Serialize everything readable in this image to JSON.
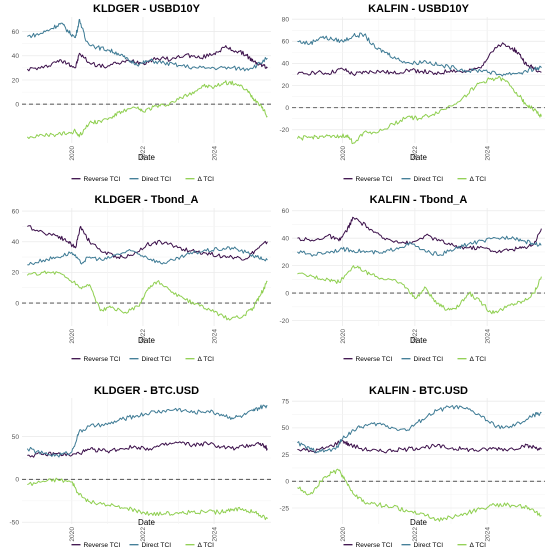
{
  "colors": {
    "reverse": "#3b0f4a",
    "direct": "#3d7a94",
    "delta": "#8fcf50",
    "zero_line": "#666666",
    "grid": "#ebebeb"
  },
  "legend": {
    "reverse": "Reverse TCI",
    "direct": "Direct TCI",
    "delta": "Δ TCI"
  },
  "chart_data": [
    {
      "type": "line",
      "title": "KLDGER - USBD10Y",
      "xlabel": "Date",
      "ylabel": "",
      "xlim": [
        2018.6,
        2025.6
      ],
      "ylim": [
        -32,
        72
      ],
      "xticks": [
        2020,
        2022,
        2024
      ],
      "yticks": [
        0,
        20,
        40,
        60
      ],
      "grid": true,
      "legend_position": "bottom",
      "series": [
        {
          "key": "reverse",
          "name": "Reverse TCI",
          "x": [
            2018.75,
            2019.2,
            2019.6,
            2019.9,
            2020.1,
            2020.22,
            2020.5,
            2020.9,
            2021.3,
            2021.7,
            2022.0,
            2022.4,
            2022.8,
            2023.2,
            2023.6,
            2024.0,
            2024.3,
            2024.6,
            2024.9,
            2025.1,
            2025.3,
            2025.5
          ],
          "y": [
            29,
            30,
            36,
            34,
            30,
            42,
            34,
            31,
            34,
            36,
            34,
            38,
            37,
            41,
            38,
            42,
            47,
            44,
            41,
            35,
            33,
            30
          ]
        },
        {
          "key": "direct",
          "name": "Direct TCI",
          "x": [
            2018.75,
            2019.1,
            2019.4,
            2019.7,
            2019.9,
            2020.1,
            2020.22,
            2020.4,
            2020.7,
            2021.0,
            2021.3,
            2021.6,
            2021.9,
            2022.2,
            2022.6,
            2023.0,
            2023.5,
            2024.0,
            2024.5,
            2024.9,
            2025.2,
            2025.5
          ],
          "y": [
            56,
            58,
            62,
            67,
            60,
            55,
            70,
            52,
            47,
            45,
            42,
            36,
            33,
            36,
            34,
            32,
            30,
            30,
            30,
            29,
            32,
            38
          ]
        },
        {
          "key": "delta",
          "name": "Δ TCI",
          "x": [
            2018.75,
            2019.2,
            2019.6,
            2019.9,
            2020.1,
            2020.22,
            2020.5,
            2020.8,
            2021.1,
            2021.4,
            2021.8,
            2022.0,
            2022.3,
            2022.6,
            2023.0,
            2023.4,
            2023.7,
            2024.0,
            2024.3,
            2024.6,
            2024.9,
            2025.1,
            2025.3,
            2025.5
          ],
          "y": [
            -27,
            -26,
            -25,
            -24,
            -22,
            -26,
            -15,
            -14,
            -11,
            -6,
            -3,
            -6,
            -2,
            -1,
            4,
            10,
            15,
            14,
            18,
            17,
            12,
            5,
            0,
            -10
          ]
        }
      ]
    },
    {
      "type": "line",
      "title": "KALFIN - USBD10Y",
      "xlabel": "Date",
      "ylabel": "",
      "xlim": [
        2018.6,
        2025.6
      ],
      "ylim": [
        -32,
        82
      ],
      "xticks": [
        2020,
        2022,
        2024
      ],
      "yticks": [
        -20,
        0,
        20,
        40,
        60,
        80
      ],
      "grid": true,
      "legend_position": "bottom",
      "series": [
        {
          "key": "reverse",
          "name": "Reverse TCI",
          "x": [
            2018.75,
            2019.2,
            2019.6,
            2020.0,
            2020.3,
            2020.6,
            2021.0,
            2021.4,
            2021.8,
            2022.2,
            2022.6,
            2023.0,
            2023.4,
            2023.8,
            2024.1,
            2024.4,
            2024.7,
            2024.9,
            2025.1,
            2025.3,
            2025.5
          ],
          "y": [
            30,
            32,
            31,
            35,
            30,
            32,
            33,
            31,
            34,
            33,
            30,
            34,
            32,
            36,
            50,
            57,
            54,
            48,
            38,
            36,
            32
          ]
        },
        {
          "key": "direct",
          "name": "Direct TCI",
          "x": [
            2018.75,
            2019.1,
            2019.4,
            2019.7,
            2020.0,
            2020.3,
            2020.6,
            2020.9,
            2021.2,
            2021.5,
            2021.9,
            2022.3,
            2022.7,
            2023.1,
            2023.5,
            2023.9,
            2024.3,
            2024.7,
            2025.0,
            2025.3,
            2025.5
          ],
          "y": [
            60,
            58,
            64,
            62,
            60,
            65,
            66,
            54,
            50,
            44,
            40,
            42,
            38,
            36,
            33,
            34,
            30,
            31,
            32,
            35,
            36
          ]
        },
        {
          "key": "delta",
          "name": "Δ TCI",
          "x": [
            2018.75,
            2019.1,
            2019.4,
            2019.8,
            2020.1,
            2020.3,
            2020.6,
            2021.0,
            2021.4,
            2021.8,
            2022.1,
            2022.5,
            2022.9,
            2023.3,
            2023.7,
            2024.0,
            2024.3,
            2024.6,
            2024.9,
            2025.1,
            2025.3,
            2025.5
          ],
          "y": [
            -28,
            -27,
            -26,
            -27,
            -25,
            -32,
            -22,
            -22,
            -15,
            -8,
            -10,
            -6,
            0,
            8,
            20,
            25,
            27,
            22,
            10,
            2,
            -2,
            -8
          ]
        }
      ]
    },
    {
      "type": "line",
      "title": "KLDGER - Tbond_A",
      "xlabel": "Date",
      "ylabel": "",
      "xlim": [
        2018.6,
        2025.6
      ],
      "ylim": [
        -15,
        62
      ],
      "xticks": [
        2020,
        2022,
        2024
      ],
      "yticks": [
        0,
        20,
        40,
        60
      ],
      "grid": true,
      "legend_position": "bottom",
      "series": [
        {
          "key": "reverse",
          "name": "Reverse TCI",
          "x": [
            2018.75,
            2019.2,
            2019.6,
            2019.9,
            2020.1,
            2020.25,
            2020.5,
            2020.9,
            2021.3,
            2021.7,
            2022.1,
            2022.5,
            2022.9,
            2023.3,
            2023.7,
            2024.1,
            2024.5,
            2024.9,
            2025.2,
            2025.5
          ],
          "y": [
            50,
            46,
            44,
            40,
            36,
            50,
            40,
            33,
            30,
            31,
            38,
            40,
            37,
            34,
            33,
            31,
            30,
            29,
            35,
            40
          ]
        },
        {
          "key": "direct",
          "name": "Direct TCI",
          "x": [
            2018.75,
            2019.2,
            2019.6,
            2020.0,
            2020.25,
            2020.5,
            2020.9,
            2021.3,
            2021.7,
            2022.1,
            2022.5,
            2022.9,
            2023.3,
            2023.7,
            2024.1,
            2024.5,
            2024.9,
            2025.2,
            2025.5
          ],
          "y": [
            25,
            28,
            30,
            33,
            26,
            30,
            28,
            32,
            34,
            30,
            26,
            28,
            32,
            34,
            35,
            36,
            33,
            30,
            28
          ]
        },
        {
          "key": "delta",
          "name": "Δ TCI",
          "x": [
            2018.75,
            2019.2,
            2019.6,
            2019.9,
            2020.25,
            2020.5,
            2020.8,
            2021.1,
            2021.5,
            2021.9,
            2022.1,
            2022.4,
            2022.8,
            2023.2,
            2023.6,
            2024.0,
            2024.4,
            2024.8,
            2025.1,
            2025.3,
            2025.5
          ],
          "y": [
            18,
            20,
            20,
            16,
            10,
            12,
            -5,
            -3,
            -6,
            -2,
            8,
            14,
            7,
            2,
            -2,
            -6,
            -10,
            -9,
            -3,
            5,
            14
          ]
        }
      ]
    },
    {
      "type": "line",
      "title": "KALFIN - Tbond_A",
      "xlabel": "Date",
      "ylabel": "",
      "xlim": [
        2018.6,
        2025.6
      ],
      "ylim": [
        -24,
        62
      ],
      "xticks": [
        2020,
        2022,
        2024
      ],
      "yticks": [
        -20,
        0,
        20,
        40,
        60
      ],
      "grid": true,
      "legend_position": "bottom",
      "series": [
        {
          "key": "reverse",
          "name": "Reverse TCI",
          "x": [
            2018.75,
            2019.2,
            2019.6,
            2019.9,
            2020.1,
            2020.3,
            2020.7,
            2021.1,
            2021.5,
            2021.9,
            2022.3,
            2022.7,
            2023.1,
            2023.5,
            2023.9,
            2024.3,
            2024.7,
            2025.0,
            2025.3,
            2025.5
          ],
          "y": [
            40,
            38,
            42,
            38,
            45,
            55,
            48,
            40,
            38,
            36,
            42,
            38,
            34,
            33,
            33,
            30,
            32,
            33,
            36,
            47
          ]
        },
        {
          "key": "direct",
          "name": "Direct TCI",
          "x": [
            2018.75,
            2019.2,
            2019.6,
            2020.0,
            2020.3,
            2020.7,
            2021.1,
            2021.5,
            2021.9,
            2022.3,
            2022.7,
            2023.1,
            2023.5,
            2023.9,
            2024.3,
            2024.7,
            2025.0,
            2025.3,
            2025.5
          ],
          "y": [
            30,
            28,
            30,
            32,
            31,
            30,
            29,
            33,
            36,
            30,
            28,
            32,
            36,
            38,
            40,
            41,
            38,
            36,
            35
          ]
        },
        {
          "key": "delta",
          "name": "Δ TCI",
          "x": [
            2018.75,
            2019.2,
            2019.6,
            2019.9,
            2020.3,
            2020.6,
            2020.9,
            2021.3,
            2021.7,
            2022.0,
            2022.3,
            2022.6,
            2022.9,
            2023.2,
            2023.5,
            2023.8,
            2024.1,
            2024.4,
            2024.7,
            2025.0,
            2025.3,
            2025.5
          ],
          "y": [
            14,
            12,
            10,
            8,
            20,
            16,
            12,
            10,
            6,
            -4,
            4,
            -8,
            -12,
            -10,
            0,
            -6,
            -14,
            -12,
            -8,
            -6,
            0,
            12
          ]
        }
      ]
    },
    {
      "type": "line",
      "title": "KLDGER - BTC.USD",
      "xlabel": "Date",
      "ylabel": "",
      "xlim": [
        2018.6,
        2025.6
      ],
      "ylim": [
        -52,
        95
      ],
      "xticks": [
        2020,
        2022,
        2024
      ],
      "yticks": [
        -50,
        0,
        50
      ],
      "grid": true,
      "legend_position": "bottom",
      "series": [
        {
          "key": "reverse",
          "name": "Reverse TCI",
          "x": [
            2018.75,
            2019.2,
            2019.6,
            2020.0,
            2020.3,
            2020.6,
            2021.0,
            2021.4,
            2021.8,
            2022.2,
            2022.6,
            2023.0,
            2023.4,
            2023.8,
            2024.2,
            2024.6,
            2025.0,
            2025.3,
            2025.5
          ],
          "y": [
            28,
            29,
            30,
            28,
            32,
            35,
            33,
            36,
            38,
            36,
            40,
            43,
            40,
            42,
            38,
            36,
            40,
            42,
            36
          ]
        },
        {
          "key": "direct",
          "name": "Direct TCI",
          "x": [
            2018.75,
            2019.2,
            2019.6,
            2020.0,
            2020.2,
            2020.5,
            2021.0,
            2021.4,
            2021.8,
            2022.2,
            2022.6,
            2023.0,
            2023.4,
            2023.8,
            2024.2,
            2024.5,
            2024.8,
            2025.1,
            2025.3,
            2025.5
          ],
          "y": [
            36,
            30,
            28,
            32,
            55,
            62,
            64,
            70,
            74,
            78,
            80,
            82,
            78,
            80,
            76,
            72,
            74,
            80,
            84,
            86
          ]
        },
        {
          "key": "delta",
          "name": "Δ TCI",
          "x": [
            2018.75,
            2019.2,
            2019.6,
            2020.0,
            2020.2,
            2020.5,
            2021.0,
            2021.4,
            2021.8,
            2022.2,
            2022.6,
            2023.0,
            2023.4,
            2023.8,
            2024.2,
            2024.5,
            2024.8,
            2025.1,
            2025.3,
            2025.5
          ],
          "y": [
            -6,
            -2,
            0,
            -3,
            -18,
            -26,
            -30,
            -33,
            -36,
            -40,
            -40,
            -40,
            -38,
            -38,
            -38,
            -36,
            -34,
            -38,
            -42,
            -46
          ]
        }
      ]
    },
    {
      "type": "line",
      "title": "KALFIN - BTC.USD",
      "xlabel": "Date",
      "ylabel": "",
      "xlim": [
        2018.6,
        2025.6
      ],
      "ylim": [
        -40,
        78
      ],
      "xticks": [
        2020,
        2022,
        2024
      ],
      "yticks": [
        -25,
        0,
        25,
        50,
        75
      ],
      "grid": true,
      "legend_position": "bottom",
      "series": [
        {
          "key": "reverse",
          "name": "Reverse TCI",
          "x": [
            2018.75,
            2019.2,
            2019.6,
            2020.0,
            2020.2,
            2020.6,
            2021.0,
            2021.4,
            2021.8,
            2022.2,
            2022.6,
            2023.0,
            2023.4,
            2023.8,
            2024.2,
            2024.6,
            2025.0,
            2025.3,
            2025.5
          ],
          "y": [
            30,
            28,
            32,
            38,
            34,
            30,
            28,
            29,
            30,
            32,
            33,
            31,
            30,
            29,
            31,
            30,
            33,
            32,
            30
          ]
        },
        {
          "key": "direct",
          "name": "Direct TCI",
          "x": [
            2018.75,
            2019.1,
            2019.4,
            2019.8,
            2020.0,
            2020.3,
            2020.6,
            2021.0,
            2021.4,
            2021.8,
            2022.2,
            2022.6,
            2023.0,
            2023.4,
            2023.8,
            2024.2,
            2024.6,
            2025.0,
            2025.3,
            2025.5
          ],
          "y": [
            36,
            30,
            28,
            30,
            40,
            48,
            52,
            54,
            50,
            48,
            58,
            66,
            70,
            68,
            62,
            52,
            50,
            56,
            62,
            64
          ]
        },
        {
          "key": "delta",
          "name": "Δ TCI",
          "x": [
            2018.75,
            2019.1,
            2019.4,
            2019.7,
            2019.9,
            2020.1,
            2020.3,
            2020.6,
            2021.0,
            2021.4,
            2021.8,
            2022.2,
            2022.6,
            2023.0,
            2023.4,
            2023.8,
            2024.2,
            2024.6,
            2025.0,
            2025.3,
            2025.5
          ],
          "y": [
            -6,
            -12,
            0,
            8,
            10,
            0,
            -12,
            -20,
            -22,
            -24,
            -28,
            -30,
            -36,
            -34,
            -30,
            -26,
            -22,
            -22,
            -24,
            -28,
            -32
          ]
        }
      ]
    }
  ]
}
